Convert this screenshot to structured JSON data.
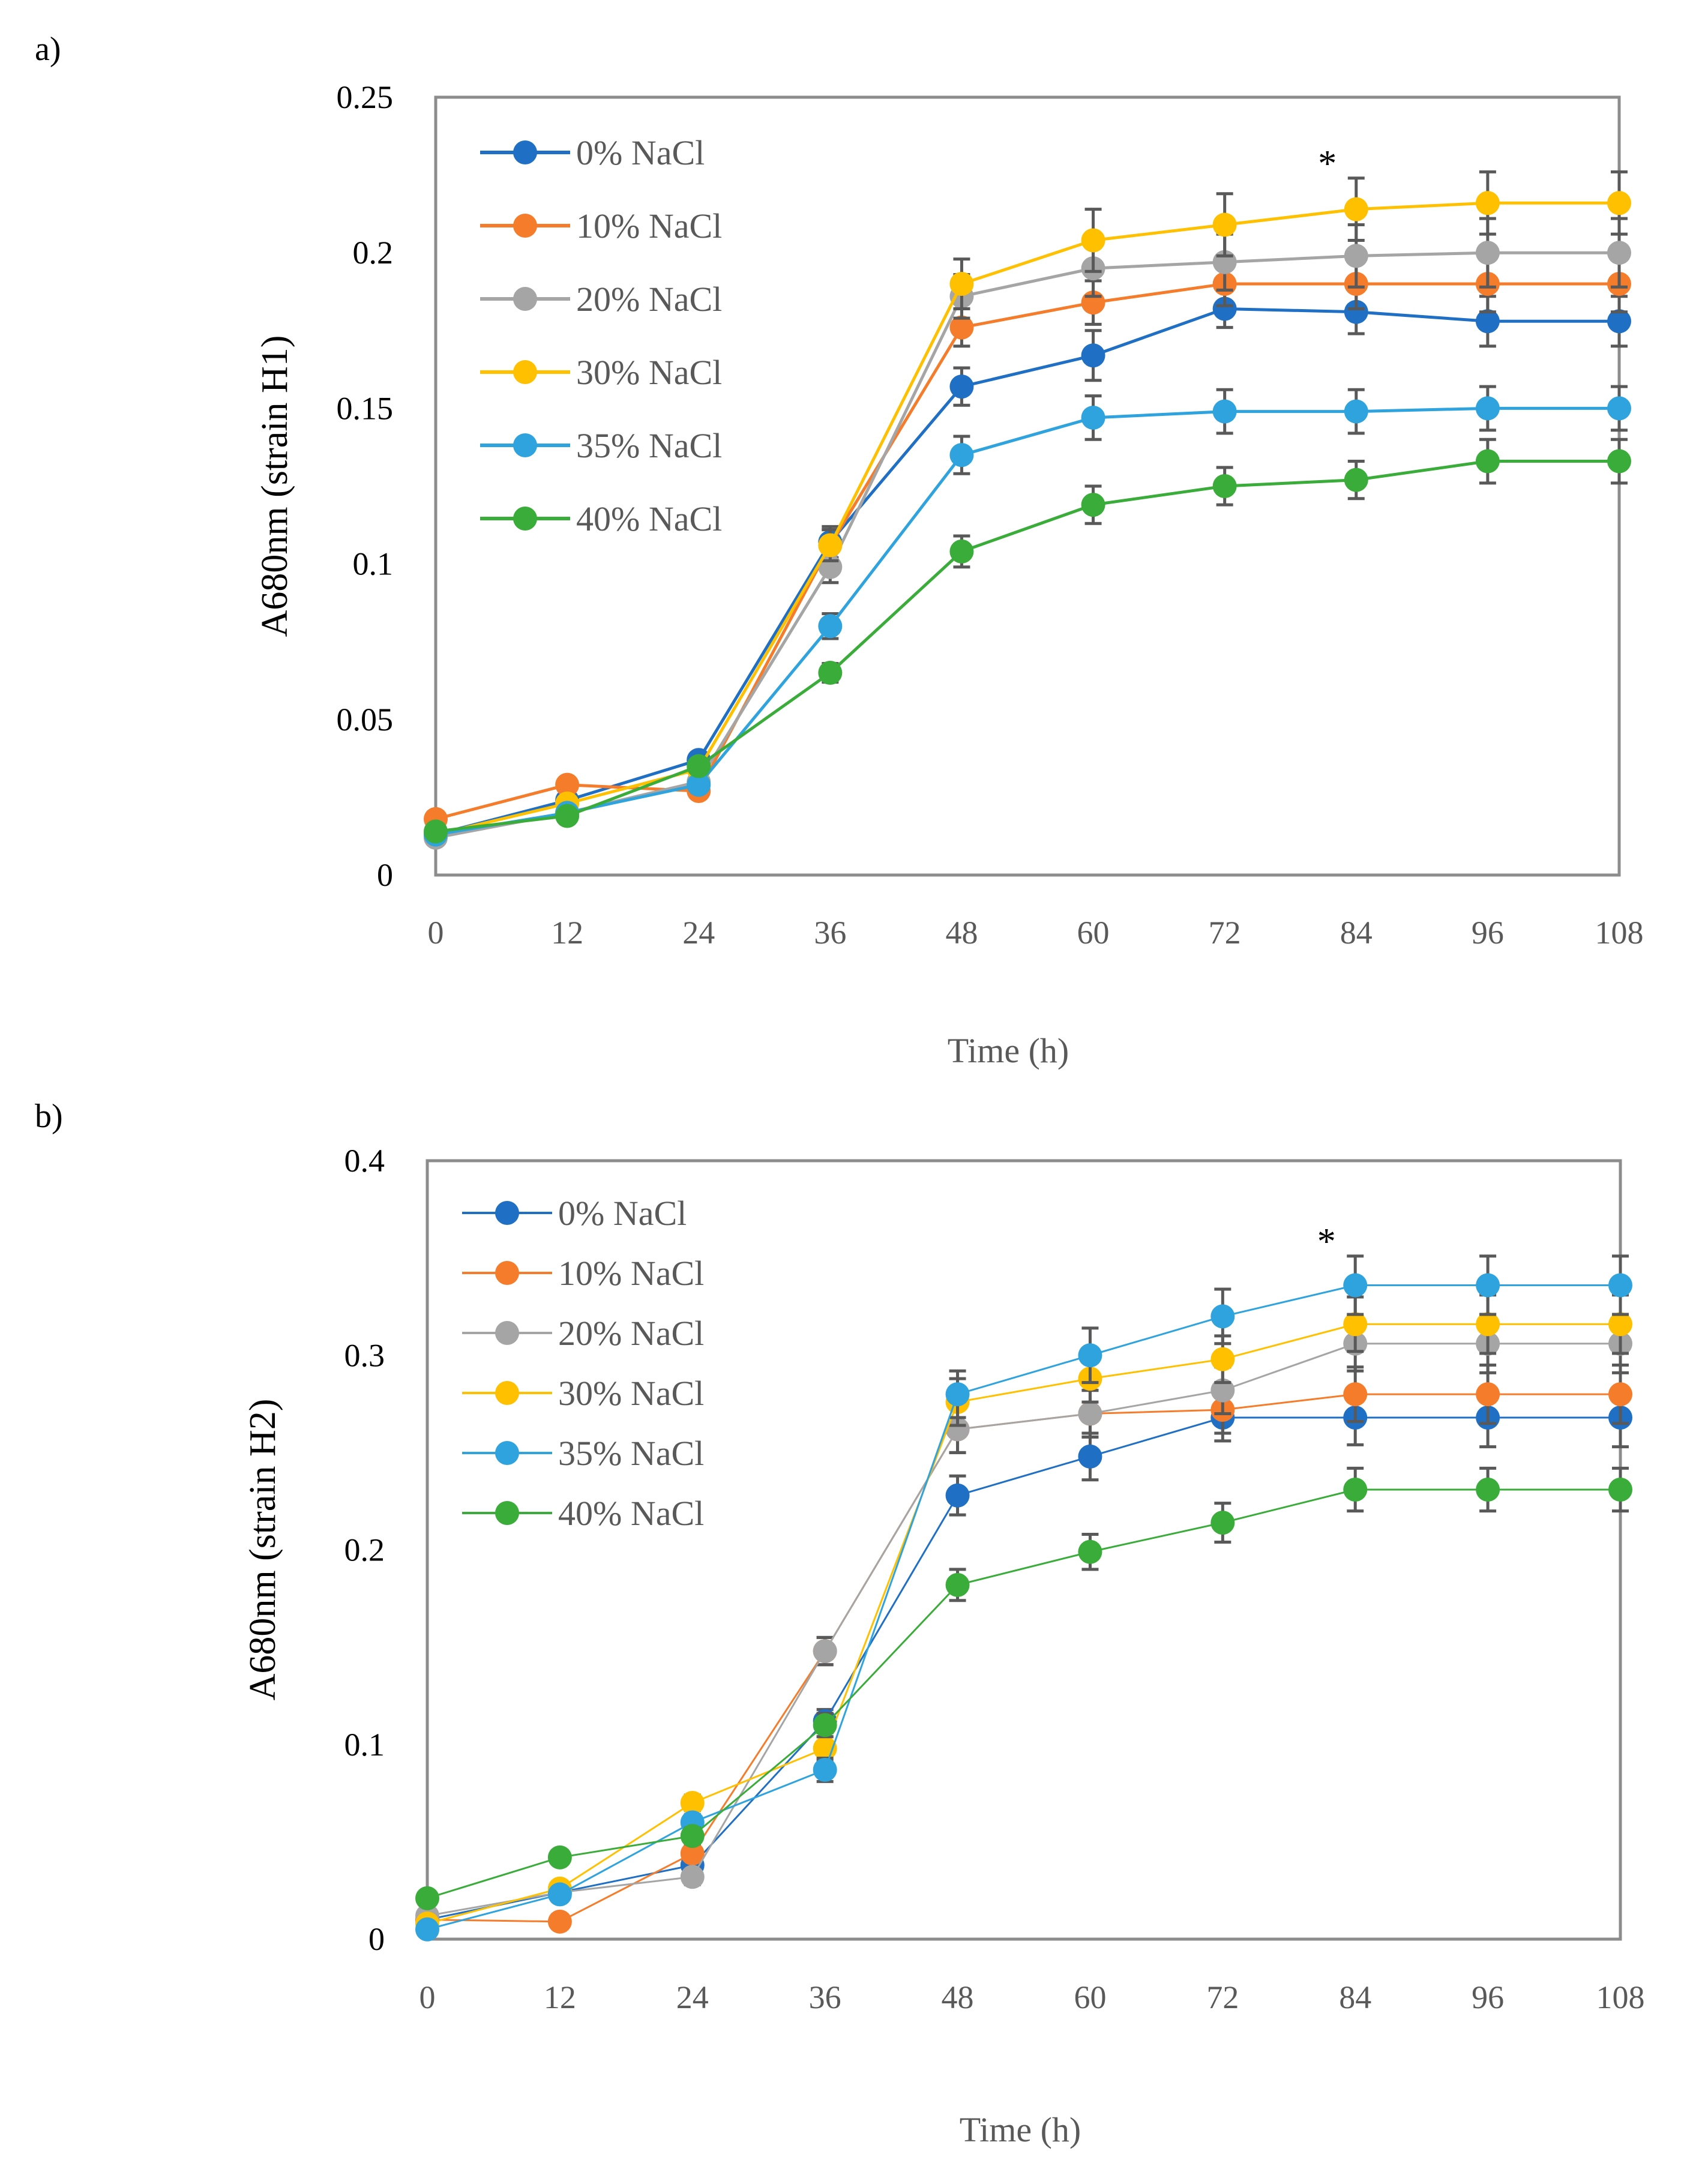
{
  "chart_data": [
    {
      "type": "line",
      "panel_label": "a)",
      "title": "",
      "xlabel": "Time (h)",
      "ylabel": "A680nm (strain H1)",
      "x": [
        0,
        12,
        24,
        36,
        48,
        60,
        72,
        84,
        96,
        108
      ],
      "x_tick_labels": [
        "0",
        "12",
        "24",
        "36",
        "48",
        "60",
        "72",
        "84",
        "96",
        "108"
      ],
      "ylim": [
        0,
        0.25
      ],
      "y_tick_labels": [
        "0",
        "0.05",
        "0.1",
        "0.15",
        "0.2",
        "0.25"
      ],
      "y_ticks": [
        0,
        0.05,
        0.1,
        0.15,
        0.2,
        0.25
      ],
      "grid": false,
      "legend_position": "top-left",
      "annotation": {
        "text": "*",
        "x": 84
      },
      "series": [
        {
          "name": "0% NaCl",
          "color": "#1f6fc5",
          "values": [
            0.013,
            0.024,
            0.037,
            0.107,
            0.157,
            0.167,
            0.182,
            0.181,
            0.178,
            0.178
          ],
          "errors": [
            0.002,
            0.002,
            0.002,
            0.005,
            0.006,
            0.008,
            0.006,
            0.007,
            0.008,
            0.008
          ]
        },
        {
          "name": "10% NaCl",
          "color": "#f57c2a",
          "values": [
            0.018,
            0.029,
            0.027,
            0.106,
            0.176,
            0.184,
            0.19,
            0.19,
            0.19,
            0.19
          ],
          "errors": [
            0.002,
            0.002,
            0.002,
            0.005,
            0.006,
            0.007,
            0.007,
            0.008,
            0.009,
            0.009
          ]
        },
        {
          "name": "20% NaCl",
          "color": "#a5a5a5",
          "values": [
            0.012,
            0.02,
            0.03,
            0.099,
            0.186,
            0.195,
            0.197,
            0.199,
            0.2,
            0.2
          ],
          "errors": [
            0.002,
            0.002,
            0.002,
            0.005,
            0.007,
            0.009,
            0.009,
            0.01,
            0.011,
            0.011
          ]
        },
        {
          "name": "30% NaCl",
          "color": "#ffc000",
          "values": [
            0.013,
            0.023,
            0.034,
            0.106,
            0.19,
            0.204,
            0.209,
            0.214,
            0.216,
            0.216
          ],
          "errors": [
            0.002,
            0.002,
            0.002,
            0.005,
            0.008,
            0.01,
            0.01,
            0.01,
            0.01,
            0.01
          ]
        },
        {
          "name": "35% NaCl",
          "color": "#2ea3de",
          "values": [
            0.013,
            0.02,
            0.029,
            0.08,
            0.135,
            0.147,
            0.149,
            0.149,
            0.15,
            0.15
          ],
          "errors": [
            0.002,
            0.002,
            0.002,
            0.004,
            0.006,
            0.007,
            0.007,
            0.007,
            0.007,
            0.007
          ]
        },
        {
          "name": "40% NaCl",
          "color": "#3aac3a",
          "values": [
            0.014,
            0.019,
            0.035,
            0.065,
            0.104,
            0.119,
            0.125,
            0.127,
            0.133,
            0.133
          ],
          "errors": [
            0.002,
            0.002,
            0.002,
            0.003,
            0.005,
            0.006,
            0.006,
            0.006,
            0.007,
            0.007
          ]
        }
      ]
    },
    {
      "type": "line",
      "panel_label": "b)",
      "title": "",
      "xlabel": "Time (h)",
      "ylabel": "A680nm (strain H2)",
      "x": [
        0,
        12,
        24,
        36,
        48,
        60,
        72,
        84,
        96,
        108
      ],
      "x_tick_labels": [
        "0",
        "12",
        "24",
        "36",
        "48",
        "60",
        "72",
        "84",
        "96",
        "108"
      ],
      "ylim": [
        0,
        0.4
      ],
      "y_tick_labels": [
        "0",
        "0.1",
        "0.2",
        "0.3",
        "0.4"
      ],
      "y_ticks": [
        0,
        0.1,
        0.2,
        0.3,
        0.4
      ],
      "grid": false,
      "legend_position": "top-left",
      "annotation": {
        "text": "*",
        "x": 84
      },
      "series": [
        {
          "name": "0% NaCl",
          "color": "#1f6fc5",
          "values": [
            0.01,
            0.024,
            0.038,
            0.112,
            0.228,
            0.248,
            0.268,
            0.268,
            0.268,
            0.268
          ],
          "errors": [
            0.003,
            0.003,
            0.004,
            0.006,
            0.01,
            0.012,
            0.012,
            0.014,
            0.015,
            0.015
          ]
        },
        {
          "name": "10% NaCl",
          "color": "#f57c2a",
          "values": [
            0.01,
            0.009,
            0.044,
            0.148,
            0.262,
            0.27,
            0.272,
            0.28,
            0.28,
            0.28
          ],
          "errors": [
            0.003,
            0.003,
            0.004,
            0.007,
            0.012,
            0.012,
            0.012,
            0.014,
            0.015,
            0.015
          ]
        },
        {
          "name": "20% NaCl",
          "color": "#a5a5a5",
          "values": [
            0.012,
            0.024,
            0.032,
            0.148,
            0.262,
            0.27,
            0.282,
            0.306,
            0.306,
            0.306
          ],
          "errors": [
            0.003,
            0.003,
            0.004,
            0.007,
            0.012,
            0.012,
            0.012,
            0.014,
            0.015,
            0.015
          ]
        },
        {
          "name": "30% NaCl",
          "color": "#ffc000",
          "values": [
            0.008,
            0.026,
            0.07,
            0.098,
            0.276,
            0.288,
            0.298,
            0.316,
            0.316,
            0.316
          ],
          "errors": [
            0.003,
            0.003,
            0.004,
            0.006,
            0.012,
            0.012,
            0.012,
            0.014,
            0.015,
            0.015
          ]
        },
        {
          "name": "35% NaCl",
          "color": "#2ea3de",
          "values": [
            0.005,
            0.023,
            0.06,
            0.087,
            0.28,
            0.3,
            0.32,
            0.336,
            0.336,
            0.336
          ],
          "errors": [
            0.003,
            0.003,
            0.004,
            0.006,
            0.012,
            0.014,
            0.014,
            0.015,
            0.015,
            0.015
          ]
        },
        {
          "name": "40% NaCl",
          "color": "#3aac3a",
          "values": [
            0.021,
            0.042,
            0.053,
            0.11,
            0.182,
            0.199,
            0.214,
            0.231,
            0.231,
            0.231
          ],
          "errors": [
            0.003,
            0.003,
            0.004,
            0.006,
            0.008,
            0.009,
            0.01,
            0.011,
            0.011,
            0.011
          ]
        }
      ]
    }
  ]
}
